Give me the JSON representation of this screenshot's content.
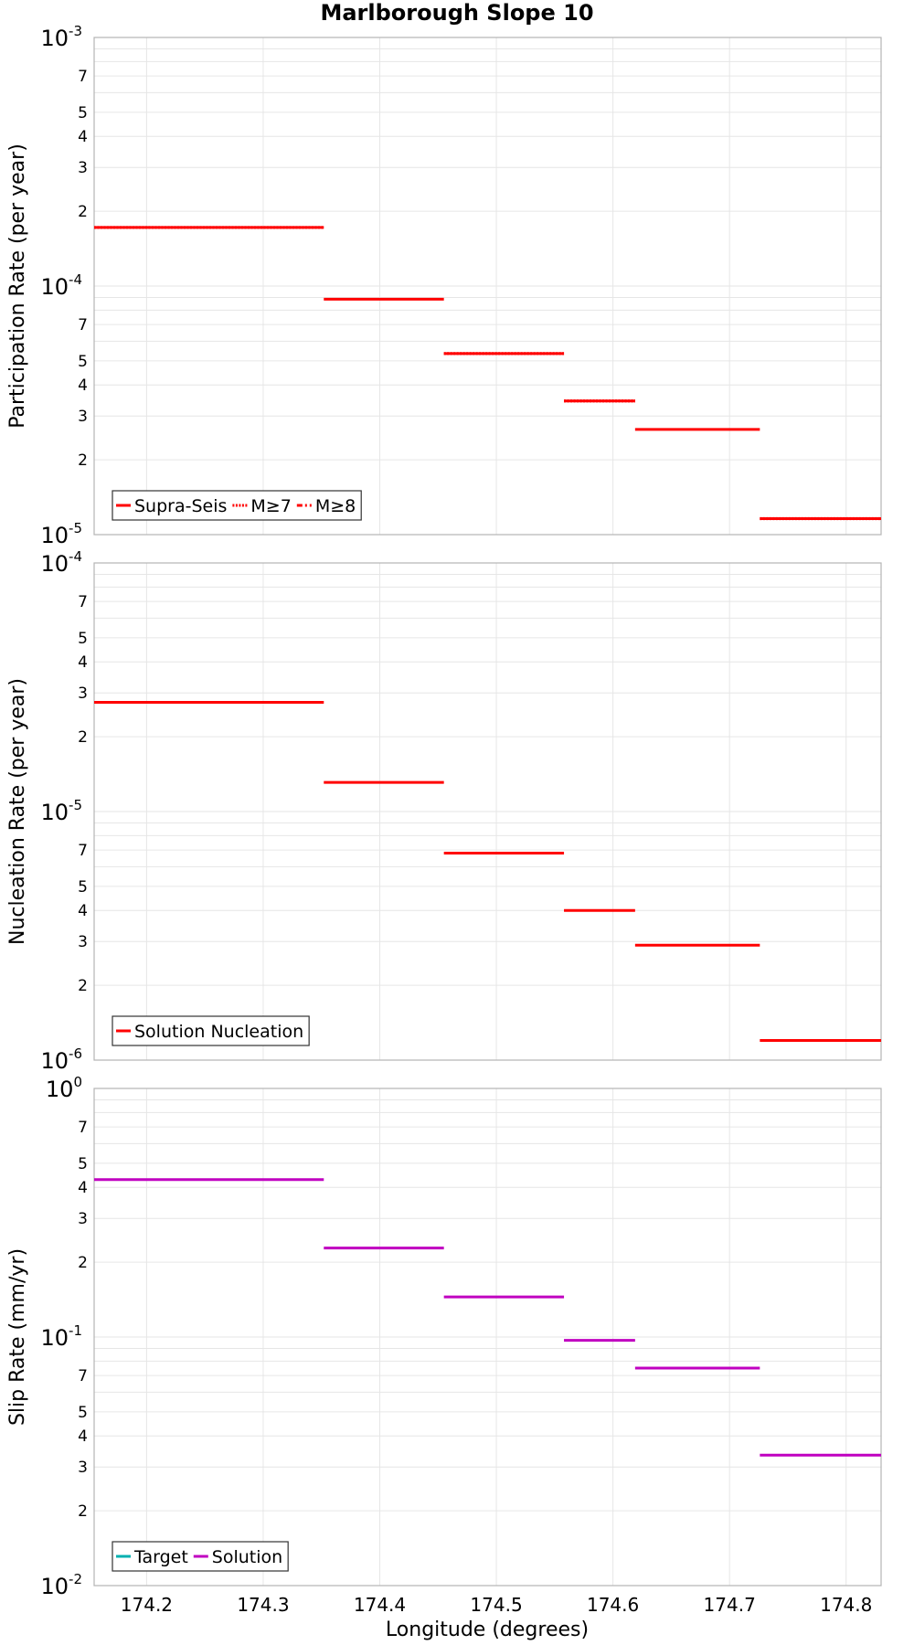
{
  "chart_data": {
    "type": "line",
    "title": "Marlborough Slope 10",
    "xlabel": "Longitude (degrees)",
    "xlim": [
      174.155,
      174.83
    ],
    "x_ticks": [
      "174.2",
      "174.3",
      "174.4",
      "174.5",
      "174.6",
      "174.7",
      "174.8"
    ],
    "panels": [
      {
        "id": "participation",
        "ylabel": "Participation Rate (per year)",
        "yscale": "log",
        "ylim_exponents": [
          -5,
          -3
        ],
        "y_major_labels": [
          {
            "base": "10",
            "exp": "-3"
          },
          {
            "base": "10",
            "exp": "-4"
          },
          {
            "base": "10",
            "exp": "-5"
          }
        ],
        "y_minor_labels": [
          "2",
          "3",
          "4",
          "5",
          "7"
        ],
        "legend": {
          "position": "bottom-left",
          "items": [
            {
              "label": "Supra-Seis",
              "style": "solid",
              "color": "#ff0000"
            },
            {
              "label": "M≥7",
              "style": "dotted",
              "color": "#ff0000"
            },
            {
              "label": "M≥8",
              "style": "dashdot",
              "color": "#ff0000"
            }
          ]
        },
        "series": [
          {
            "name": "Supra-Seis",
            "color": "#ff0000",
            "style": "solid",
            "segments": [
              {
                "x": [
                  174.155,
                  174.352
                ],
                "y": 0.000172
              },
              {
                "x": [
                  174.352,
                  174.455
                ],
                "y": 8.85e-05
              },
              {
                "x": [
                  174.455,
                  174.558
                ],
                "y": 5.35e-05
              },
              {
                "x": [
                  174.558,
                  174.619
                ],
                "y": 3.45e-05
              },
              {
                "x": [
                  174.619,
                  174.726
                ],
                "y": 2.65e-05
              },
              {
                "x": [
                  174.726,
                  174.83
                ],
                "y": 1.16e-05
              }
            ]
          },
          {
            "name": "M≥7",
            "color": "#ff0000",
            "style": "dotted",
            "segments": [
              {
                "x": [
                  174.155,
                  174.352
                ],
                "y": 0.000172
              },
              {
                "x": [
                  174.455,
                  174.558
                ],
                "y": 5.35e-05
              },
              {
                "x": [
                  174.558,
                  174.619
                ],
                "y": 3.45e-05
              },
              {
                "x": [
                  174.726,
                  174.83
                ],
                "y": 1.16e-05
              }
            ]
          }
        ]
      },
      {
        "id": "nucleation",
        "ylabel": "Nucleation Rate (per year)",
        "yscale": "log",
        "ylim_exponents": [
          -6,
          -4
        ],
        "y_major_labels": [
          {
            "base": "10",
            "exp": "-4"
          },
          {
            "base": "10",
            "exp": "-5"
          },
          {
            "base": "10",
            "exp": "-6"
          }
        ],
        "y_minor_labels": [
          "2",
          "3",
          "4",
          "5",
          "7"
        ],
        "legend": {
          "position": "bottom-left",
          "items": [
            {
              "label": "Solution Nucleation",
              "style": "solid",
              "color": "#ff0000"
            }
          ]
        },
        "series": [
          {
            "name": "Solution Nucleation",
            "color": "#ff0000",
            "style": "solid",
            "segments": [
              {
                "x": [
                  174.155,
                  174.352
                ],
                "y": 2.75e-05
              },
              {
                "x": [
                  174.352,
                  174.455
                ],
                "y": 1.31e-05
              },
              {
                "x": [
                  174.455,
                  174.558
                ],
                "y": 6.8e-06
              },
              {
                "x": [
                  174.558,
                  174.619
                ],
                "y": 4e-06
              },
              {
                "x": [
                  174.619,
                  174.726
                ],
                "y": 2.9e-06
              },
              {
                "x": [
                  174.726,
                  174.83
                ],
                "y": 1.2e-06
              }
            ]
          }
        ]
      },
      {
        "id": "slip",
        "ylabel": "Slip Rate (mm/yr)",
        "yscale": "log",
        "ylim_exponents": [
          -2,
          0
        ],
        "y_major_labels": [
          {
            "base": "10",
            "exp": "0"
          },
          {
            "base": "10",
            "exp": "-1"
          },
          {
            "base": "10",
            "exp": "-2"
          }
        ],
        "y_minor_labels": [
          "2",
          "3",
          "4",
          "5",
          "7"
        ],
        "legend": {
          "position": "bottom-left",
          "items": [
            {
              "label": "Target",
              "style": "solid",
              "color": "#00b0b0"
            },
            {
              "label": "Solution",
              "style": "solid",
              "color": "#c000c0"
            }
          ]
        },
        "series": [
          {
            "name": "Solution",
            "color": "#c000c0",
            "style": "solid",
            "segments": [
              {
                "x": [
                  174.155,
                  174.352
                ],
                "y": 0.43
              },
              {
                "x": [
                  174.352,
                  174.455
                ],
                "y": 0.228
              },
              {
                "x": [
                  174.455,
                  174.558
                ],
                "y": 0.145
              },
              {
                "x": [
                  174.558,
                  174.619
                ],
                "y": 0.097
              },
              {
                "x": [
                  174.619,
                  174.726
                ],
                "y": 0.075
              },
              {
                "x": [
                  174.726,
                  174.83
                ],
                "y": 0.0335
              }
            ]
          }
        ]
      }
    ]
  }
}
